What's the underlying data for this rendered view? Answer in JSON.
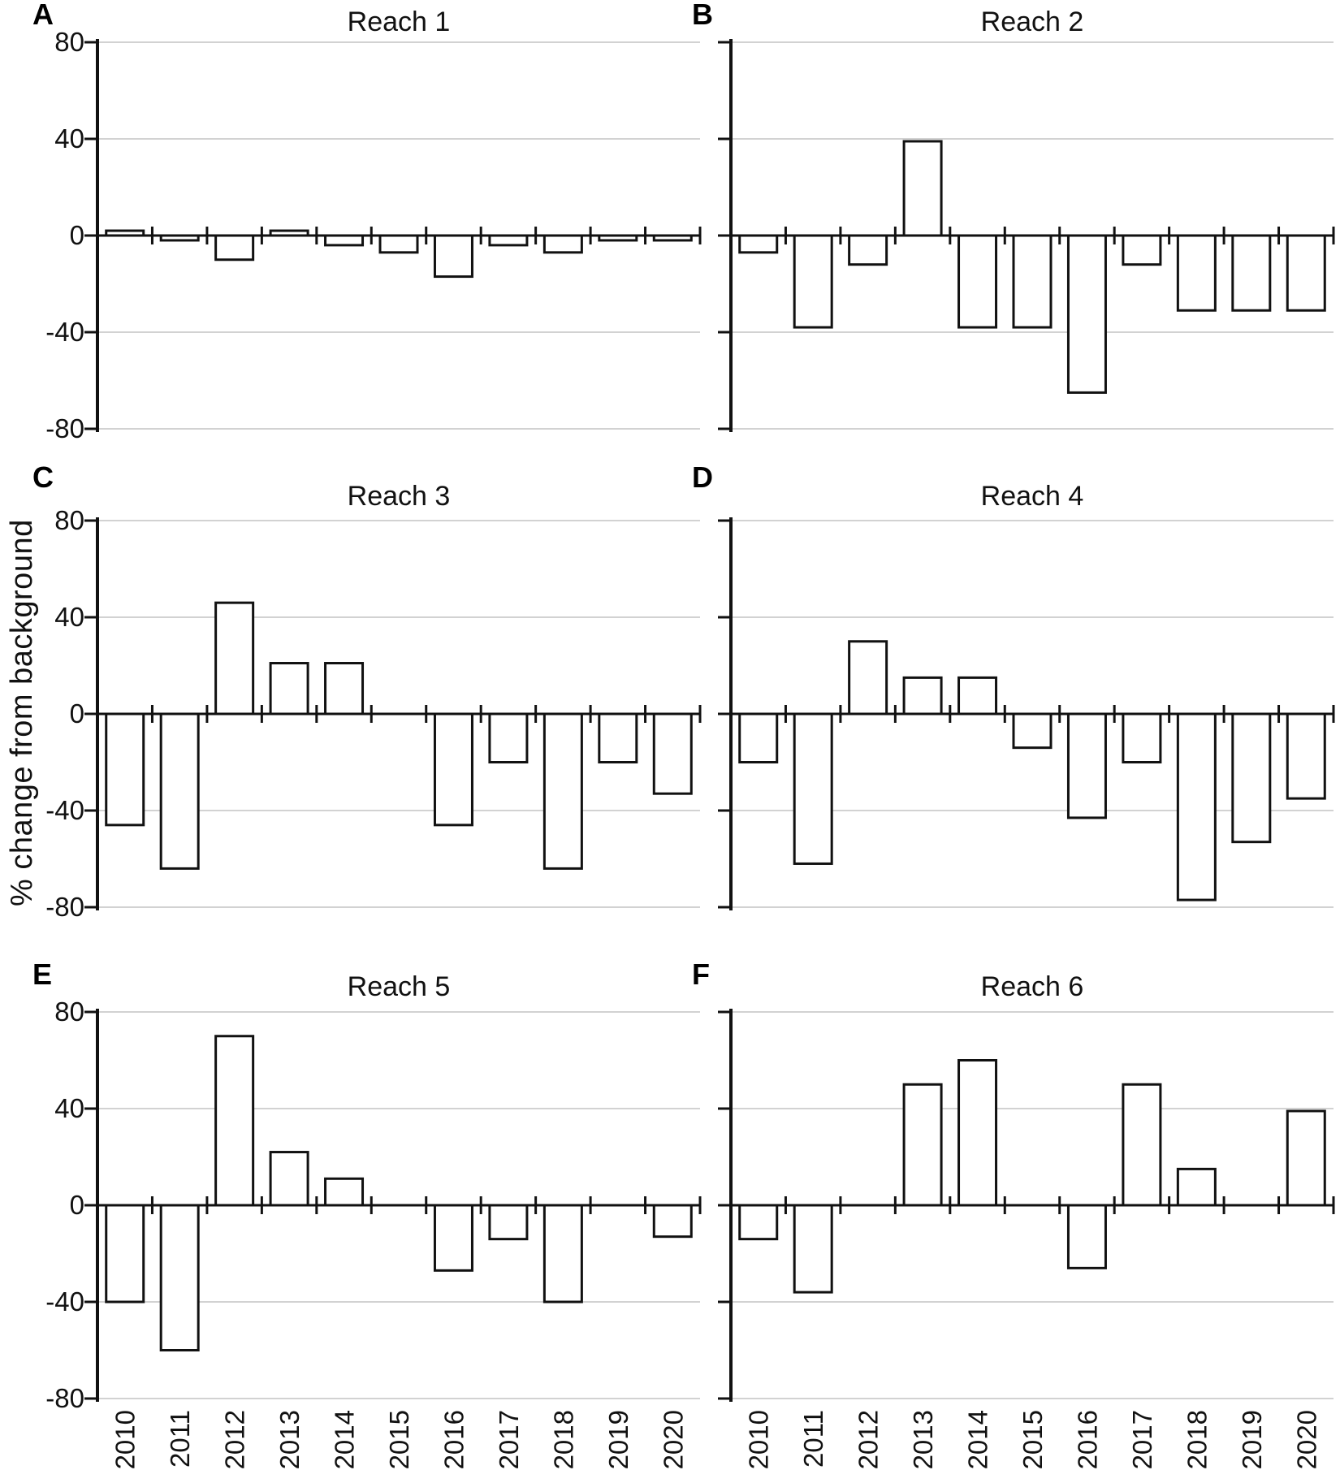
{
  "figure": {
    "background": "#ffffff",
    "bar_fill": "#ffffff",
    "bar_stroke": "#111111",
    "axis_color": "#111111",
    "grid_color": "#d2d2d2",
    "text_color": "#111111"
  },
  "chart_data": {
    "type": "bar",
    "title": "",
    "ylabel": "% change from background",
    "xlabel": "",
    "ylim": [
      -80,
      80
    ],
    "yticks": [
      80,
      40,
      0,
      -40,
      -80
    ],
    "ytick_labels": [
      "80",
      "40",
      "0",
      "-40",
      "-80"
    ],
    "grid": true,
    "legend": false,
    "categories": [
      "2010",
      "2011",
      "2012",
      "2013",
      "2014",
      "2015",
      "2016",
      "2017",
      "2018",
      "2019",
      "2020"
    ],
    "panels": [
      {
        "label": "A",
        "title": "Reach 1",
        "values": [
          2,
          -2,
          -10,
          2,
          -4,
          -7,
          -17,
          -4,
          -7,
          -2,
          -2
        ]
      },
      {
        "label": "B",
        "title": "Reach 2",
        "values": [
          -7,
          -38,
          -12,
          39,
          -38,
          -38,
          -65,
          -12,
          -31,
          -31,
          -31
        ]
      },
      {
        "label": "C",
        "title": "Reach 3",
        "values": [
          -46,
          -64,
          46,
          21,
          21,
          0,
          -46,
          -20,
          -64,
          -20,
          -33
        ]
      },
      {
        "label": "D",
        "title": "Reach 4",
        "values": [
          -20,
          -62,
          30,
          15,
          15,
          -14,
          -43,
          -20,
          -77,
          -53,
          -35
        ]
      },
      {
        "label": "E",
        "title": "Reach 5",
        "values": [
          -40,
          -60,
          70,
          22,
          11,
          0,
          -27,
          -14,
          -40,
          0,
          -13
        ]
      },
      {
        "label": "F",
        "title": "Reach 6",
        "values": [
          -14,
          -36,
          0,
          50,
          60,
          0,
          -26,
          50,
          15,
          0,
          39
        ]
      }
    ]
  }
}
